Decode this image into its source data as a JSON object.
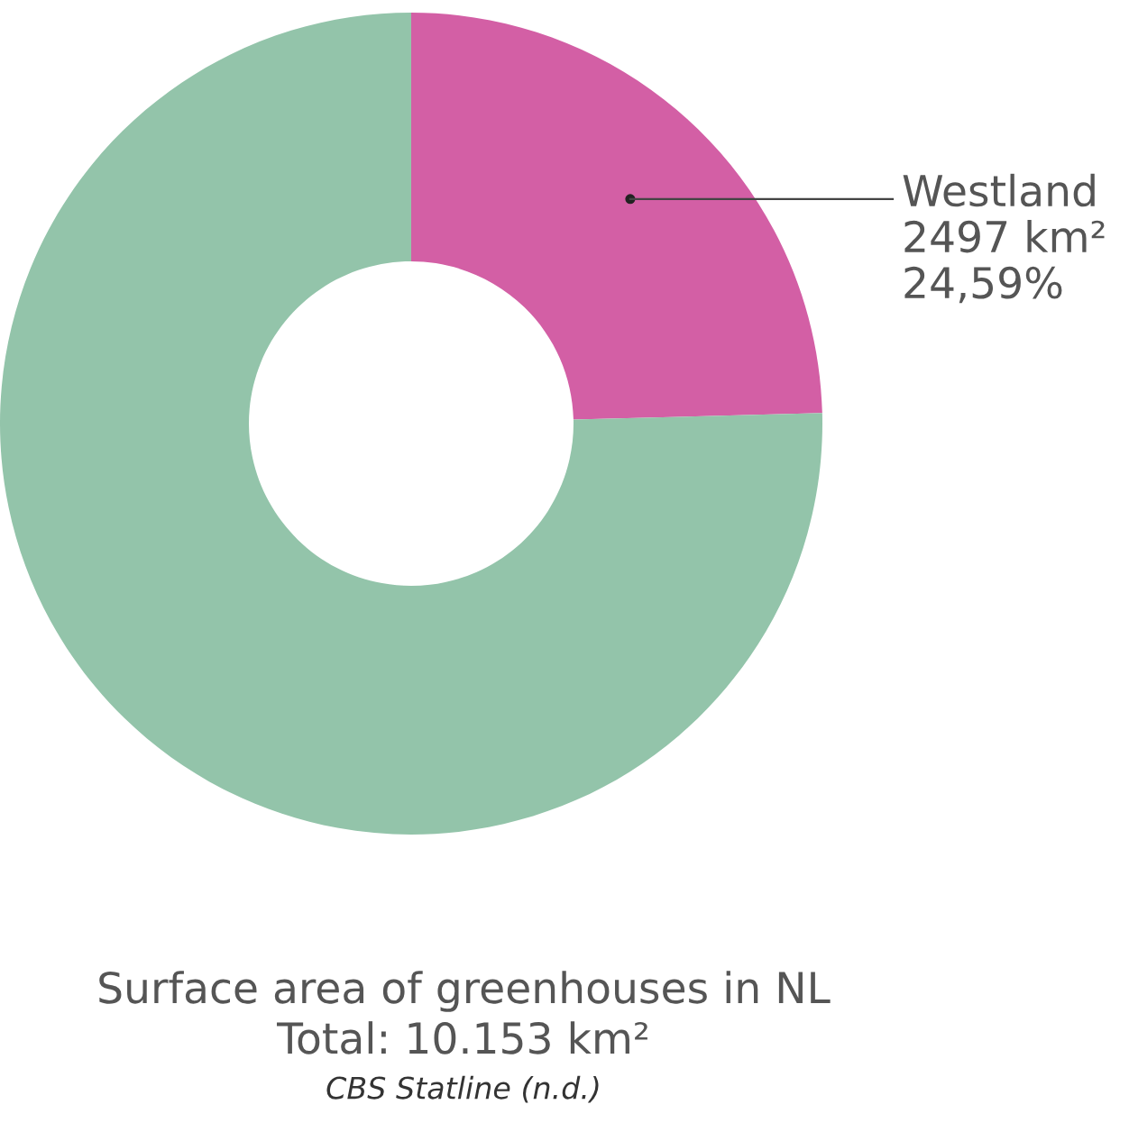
{
  "chart_data": {
    "type": "donut",
    "title": "Surface area of greenhouses in NL",
    "subtitle": "Total: 10.153 km²",
    "annotations": [
      "CBS Statline (n.d.)"
    ],
    "categories": [
      "Westland",
      null
    ],
    "values": [
      2497,
      7656
    ],
    "colors": [
      "#d35fa5",
      "#93c4aa"
    ],
    "value_labels": [
      "2497 km²\n24,59%",
      null
    ],
    "legend": false
  }
}
